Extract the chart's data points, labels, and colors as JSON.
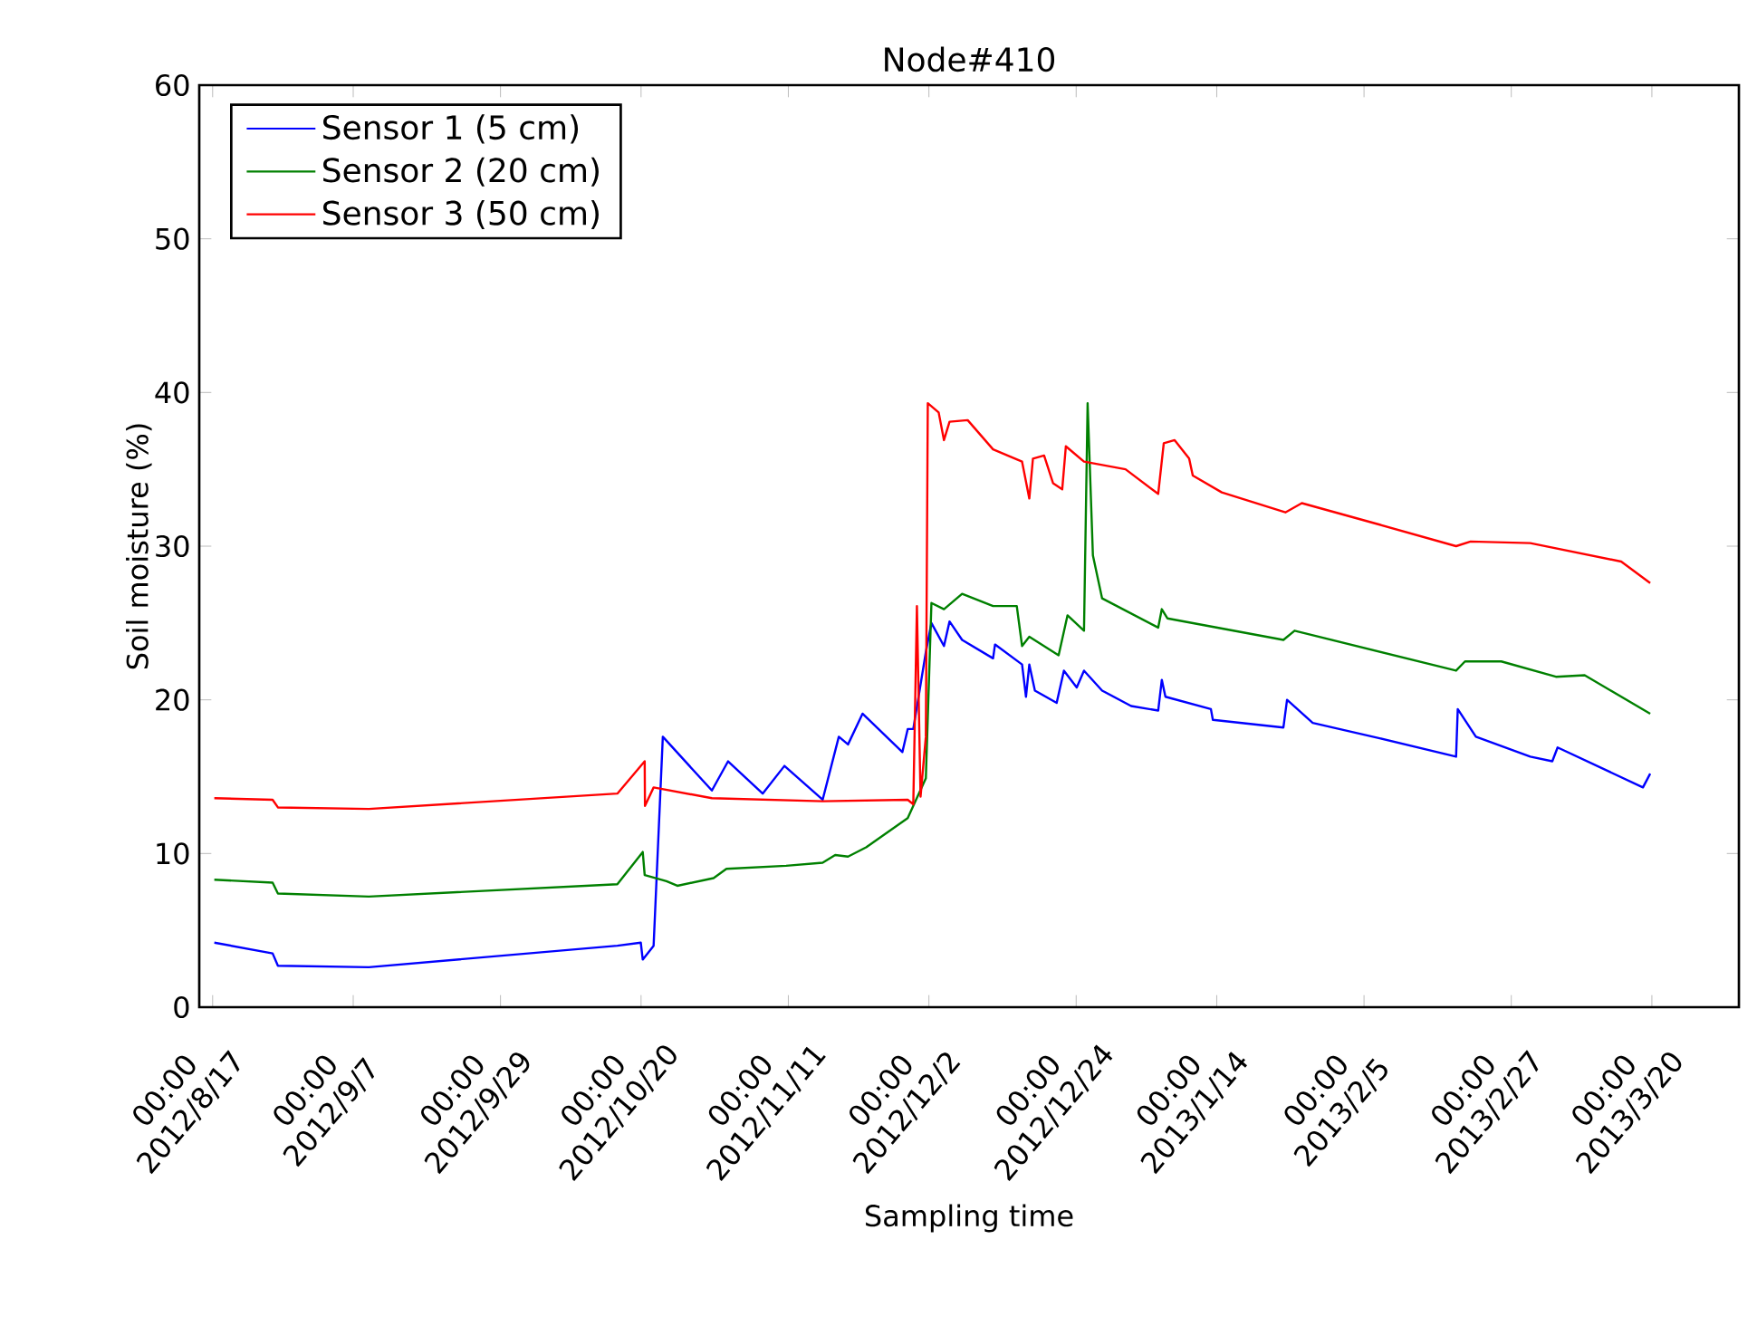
{
  "chart_data": {
    "type": "line",
    "title": "Node#410",
    "xlabel": "Sampling time",
    "ylabel": "Soil moisture (%)",
    "xlim": [
      "2012-08-15",
      "2013-04-02"
    ],
    "ylim": [
      0,
      60
    ],
    "yticks": [
      0,
      10,
      20,
      30,
      40,
      50,
      60
    ],
    "xticks": [
      {
        "value": "2012-08-17",
        "label": "00:00 2012/8/17"
      },
      {
        "value": "2012-09-07",
        "label": "00:00 2012/9/7"
      },
      {
        "value": "2012-09-29",
        "label": "00:00 2012/9/29"
      },
      {
        "value": "2012-10-20",
        "label": "00:00 2012/10/20"
      },
      {
        "value": "2012-11-11",
        "label": "00:00 2012/11/11"
      },
      {
        "value": "2012-12-02",
        "label": "00:00 2012/12/2"
      },
      {
        "value": "2012-12-24",
        "label": "00:00 2012/12/24"
      },
      {
        "value": "2013-01-14",
        "label": "00:00 2013/1/14"
      },
      {
        "value": "2013-02-05",
        "label": "00:00 2013/2/5"
      },
      {
        "value": "2013-02-27",
        "label": "00:00 2013/2/27"
      },
      {
        "value": "2013-03-20",
        "label": "00:00 2013/3/20"
      }
    ],
    "legend": "top left",
    "grid": false,
    "marker": "none",
    "line_style": "solid",
    "series": [
      {
        "name": "Sensor 1 (5 cm)",
        "color": "#0000ff",
        "x": [
          "2012-08-17T06:00",
          "2012-08-25T23:00",
          "2012-08-26T18:00",
          "2012-09-09T08:00",
          "2012-10-16T11:00",
          "2012-10-19T23:00",
          "2012-10-20T06:00",
          "2012-10-21T21:00",
          "2012-10-23T06:00",
          "2012-10-30T14:00",
          "2012-11-02T00:00",
          "2012-11-07T04:00",
          "2012-11-10T10:00",
          "2012-11-16T03:00",
          "2012-11-18T13:00",
          "2012-11-19T22:00",
          "2012-11-22T02:00",
          "2012-11-28T01:00",
          "2012-11-28T20:00",
          "2012-11-29T16:00",
          "2012-12-01T13:00",
          "2012-12-02T09:00",
          "2012-12-04T06:00",
          "2012-12-05T02:00",
          "2012-12-06T23:00",
          "2012-12-11T14:00",
          "2012-12-11T21:00",
          "2012-12-15T22:00",
          "2012-12-16T12:00",
          "2012-12-17T00:00",
          "2012-12-17T20:00",
          "2012-12-21T02:00",
          "2012-12-22T04:00",
          "2012-12-24T02:00",
          "2012-12-25T04:00",
          "2012-12-27T21:00",
          "2013-01-01T05:00",
          "2013-01-05T06:00",
          "2013-01-05T19:00",
          "2013-01-06T08:00",
          "2013-01-13T03:00",
          "2013-01-13T10:00",
          "2013-01-23T23:00",
          "2013-01-24T12:00",
          "2013-01-28T08:00",
          "2013-02-07T08:00",
          "2013-02-18T18:00",
          "2013-02-19T00:00",
          "2013-02-21T17:00",
          "2013-03-01T20:00",
          "2013-03-05T03:00",
          "2013-03-05T22:00",
          "2013-03-18T16:00",
          "2013-03-19T18:00"
        ],
        "values": [
          4.2,
          3.5,
          2.7,
          2.6,
          4.0,
          4.2,
          3.1,
          4.0,
          17.6,
          14.1,
          16.0,
          13.9,
          15.7,
          13.5,
          17.6,
          17.1,
          19.1,
          16.6,
          18.1,
          18.1,
          23.1,
          25.0,
          23.5,
          25.1,
          23.9,
          22.7,
          23.6,
          22.3,
          20.2,
          22.3,
          20.6,
          19.8,
          21.9,
          20.8,
          21.9,
          20.6,
          19.6,
          19.3,
          21.3,
          20.2,
          19.4,
          18.7,
          18.2,
          20.0,
          18.5,
          17.5,
          16.3,
          19.4,
          17.6,
          16.3,
          16.0,
          16.9,
          14.3,
          15.2
        ]
      },
      {
        "name": "Sensor 2 (20 cm)",
        "color": "#008000",
        "x": [
          "2012-08-17T06:00",
          "2012-08-25T23:00",
          "2012-08-26T18:00",
          "2012-09-09T08:00",
          "2012-10-16T11:00",
          "2012-10-20T06:00",
          "2012-10-20T13:00",
          "2012-10-23T19:00",
          "2012-10-25T10:00",
          "2012-10-30T20:00",
          "2012-11-01T18:00",
          "2012-11-10T16:00",
          "2012-11-16T03:00",
          "2012-11-18T00:00",
          "2012-11-19T22:00",
          "2012-11-22T15:00",
          "2012-11-28T20:00",
          "2012-12-01T13:00",
          "2012-12-02T09:00",
          "2012-12-04T06:00",
          "2012-12-06T23:00",
          "2012-12-11T14:00",
          "2012-12-15T03:00",
          "2012-12-15T22:00",
          "2012-12-17T00:00",
          "2012-12-21T09:00",
          "2012-12-22T17:00",
          "2012-12-25T04:00",
          "2012-12-25T17:00",
          "2012-12-26T12:00",
          "2012-12-27T21:00",
          "2013-01-05T06:00",
          "2013-01-05T19:00",
          "2013-01-06T15:00",
          "2013-01-23T23:00",
          "2013-01-25T15:00",
          "2013-02-18T18:00",
          "2013-02-20T02:00",
          "2013-02-25T12:00",
          "2013-03-05T16:00",
          "2013-03-09T23:00",
          "2013-03-19T18:00"
        ],
        "values": [
          8.3,
          8.1,
          7.4,
          7.2,
          8.0,
          10.1,
          8.6,
          8.2,
          7.9,
          8.4,
          9.0,
          9.2,
          9.4,
          9.9,
          9.8,
          10.4,
          12.3,
          14.9,
          26.3,
          25.9,
          26.9,
          26.1,
          26.1,
          23.5,
          24.1,
          22.9,
          25.5,
          24.5,
          39.3,
          29.4,
          26.6,
          24.7,
          25.9,
          25.3,
          23.9,
          24.5,
          21.9,
          22.5,
          22.5,
          21.5,
          21.6,
          19.1
        ]
      },
      {
        "name": "Sensor 3 (50 cm)",
        "color": "#ff0000",
        "x": [
          "2012-08-17T06:00",
          "2012-08-25T23:00",
          "2012-08-26T18:00",
          "2012-09-09T08:00",
          "2012-10-16T11:00",
          "2012-10-20T13:00",
          "2012-10-20T14:00",
          "2012-10-21T21:00",
          "2012-10-30T14:00",
          "2012-11-16T03:00",
          "2012-11-28T20:00",
          "2012-11-29T16:00",
          "2012-11-30T05:00",
          "2012-11-30T18:00",
          "2012-12-01T13:00",
          "2012-12-01T20:00",
          "2012-12-03T11:00",
          "2012-12-04T06:00",
          "2012-12-05T02:00",
          "2012-12-07T19:00",
          "2012-12-11T14:00",
          "2012-12-15T22:00",
          "2012-12-17T00:00",
          "2012-12-17T13:00",
          "2012-12-19T05:00",
          "2012-12-20T13:00",
          "2012-12-21T22:00",
          "2012-12-22T11:00",
          "2012-12-25T04:00",
          "2012-12-31T09:00",
          "2013-01-05T06:00",
          "2013-01-06T02:00",
          "2013-01-07T17:00",
          "2013-01-09T21:00",
          "2013-01-10T10:00",
          "2013-01-14T18:00",
          "2013-01-24T06:00",
          "2013-01-26T17:00",
          "2013-02-07T08:00",
          "2013-02-18T18:00",
          "2013-02-20T22:00",
          "2013-03-01T20:00",
          "2013-03-15T10:00",
          "2013-03-19T18:00"
        ],
        "values": [
          13.6,
          13.5,
          13.0,
          12.9,
          13.9,
          16.0,
          13.1,
          14.3,
          13.6,
          13.4,
          13.5,
          13.2,
          26.1,
          13.7,
          17.6,
          39.3,
          38.7,
          36.9,
          38.1,
          38.2,
          36.3,
          35.5,
          33.1,
          35.7,
          35.9,
          34.1,
          33.7,
          36.5,
          35.5,
          35.0,
          33.4,
          36.7,
          36.9,
          35.7,
          34.6,
          33.5,
          32.2,
          32.8,
          31.4,
          30.0,
          30.3,
          30.2,
          29.0,
          27.6
        ]
      }
    ]
  }
}
